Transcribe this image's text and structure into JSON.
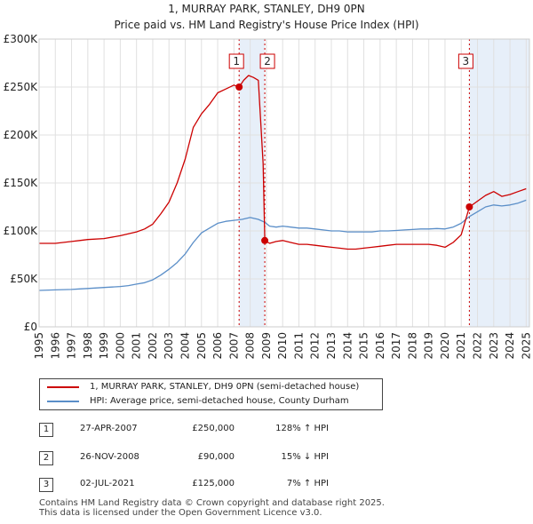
{
  "chart_data": {
    "type": "line",
    "title": "1, MURRAY PARK, STANLEY, DH9 0PN",
    "subtitle": "Price paid vs. HM Land Registry's House Price Index (HPI)",
    "xlabel": "",
    "ylabel": "",
    "xlim": [
      1995,
      2025.2
    ],
    "ylim": [
      0,
      300000
    ],
    "y_ticks": [
      {
        "value": 0,
        "label": "£0"
      },
      {
        "value": 50000,
        "label": "£50K"
      },
      {
        "value": 100000,
        "label": "£100K"
      },
      {
        "value": 150000,
        "label": "£150K"
      },
      {
        "value": 200000,
        "label": "£200K"
      },
      {
        "value": 250000,
        "label": "£250K"
      },
      {
        "value": 300000,
        "label": "£300K"
      }
    ],
    "x_ticks": [
      "1995",
      "1996",
      "1997",
      "1998",
      "1999",
      "2000",
      "2001",
      "2002",
      "2003",
      "2004",
      "2005",
      "2006",
      "2007",
      "2008",
      "2009",
      "2010",
      "2011",
      "2012",
      "2013",
      "2014",
      "2015",
      "2016",
      "2017",
      "2018",
      "2019",
      "2020",
      "2021",
      "2022",
      "2023",
      "2024",
      "2025"
    ],
    "grid": true,
    "series": [
      {
        "name": "1, MURRAY PARK, STANLEY, DH9 0PN (semi-detached house)",
        "color": "#cc0000",
        "x": [
          1995.0,
          1996.0,
          1997.0,
          1997.5,
          1998.0,
          1999.0,
          2000.0,
          2000.5,
          2001.0,
          2001.5,
          2002.0,
          2002.5,
          2003.0,
          2003.5,
          2004.0,
          2004.5,
          2005.0,
          2005.5,
          2006.0,
          2006.5,
          2007.0,
          2007.32,
          2007.6,
          2007.9,
          2008.2,
          2008.5,
          2008.8,
          2008.9,
          2009.2,
          2009.6,
          2010.0,
          2010.5,
          2011.0,
          2011.5,
          2012.0,
          2012.5,
          2013.0,
          2013.5,
          2014.0,
          2014.5,
          2015.0,
          2015.5,
          2016.0,
          2016.5,
          2017.0,
          2017.5,
          2018.0,
          2018.5,
          2019.0,
          2019.5,
          2020.0,
          2020.5,
          2021.0,
          2021.5,
          2022.0,
          2022.5,
          2023.0,
          2023.5,
          2024.0,
          2024.5,
          2025.0
        ],
        "values": [
          87000,
          87000,
          89000,
          90000,
          91000,
          92000,
          95000,
          97000,
          99000,
          102000,
          107000,
          118000,
          130000,
          150000,
          175000,
          208000,
          222000,
          232000,
          244000,
          248000,
          252000,
          250000,
          257000,
          262000,
          260000,
          257000,
          170000,
          90000,
          87000,
          89000,
          90000,
          88000,
          86000,
          86000,
          85000,
          84000,
          83000,
          82000,
          81000,
          81000,
          82000,
          83000,
          84000,
          85000,
          86000,
          86000,
          86000,
          86000,
          86000,
          85000,
          83000,
          88000,
          96000,
          125000,
          131000,
          137000,
          141000,
          136000,
          138000,
          141000,
          144000
        ]
      },
      {
        "name": "HPI: Average price, semi-detached house, County Durham",
        "color": "#5a8ec8",
        "x": [
          1995.0,
          1996.0,
          1997.0,
          1997.5,
          1998.0,
          1999.0,
          2000.0,
          2000.5,
          2001.0,
          2001.5,
          2002.0,
          2002.5,
          2003.0,
          2003.5,
          2004.0,
          2004.5,
          2005.0,
          2005.5,
          2006.0,
          2006.5,
          2007.0,
          2007.5,
          2008.0,
          2008.5,
          2008.9,
          2009.2,
          2009.6,
          2010.0,
          2010.5,
          2011.0,
          2011.5,
          2012.0,
          2012.5,
          2013.0,
          2013.5,
          2014.0,
          2014.5,
          2015.0,
          2015.5,
          2016.0,
          2016.5,
          2017.0,
          2017.5,
          2018.0,
          2018.5,
          2019.0,
          2019.5,
          2020.0,
          2020.5,
          2021.0,
          2021.5,
          2022.0,
          2022.5,
          2023.0,
          2023.5,
          2024.0,
          2024.5,
          2025.0
        ],
        "values": [
          38000,
          38500,
          39000,
          39500,
          40000,
          41000,
          42000,
          43000,
          44500,
          46000,
          49000,
          54000,
          60000,
          67000,
          76000,
          88000,
          98000,
          103000,
          108000,
          110000,
          111000,
          112000,
          114000,
          112000,
          109000,
          105000,
          104000,
          105000,
          104000,
          103000,
          103000,
          102000,
          101000,
          100000,
          100000,
          99000,
          99000,
          99000,
          99000,
          100000,
          100000,
          100500,
          101000,
          101500,
          102000,
          102000,
          102500,
          102000,
          104000,
          108000,
          115000,
          120000,
          125000,
          127000,
          126000,
          127000,
          129000,
          132000
        ]
      }
    ],
    "sales": [
      {
        "num": "1",
        "x": 2007.32,
        "value": 250000
      },
      {
        "num": "2",
        "x": 2008.9,
        "value": 90000
      },
      {
        "num": "3",
        "x": 2021.5,
        "value": 125000
      }
    ],
    "shaded_spans": [
      {
        "from": 2007.32,
        "to": 2008.9
      },
      {
        "from": 2021.5,
        "to": 2025.2
      }
    ]
  },
  "legend": {
    "series1": "1, MURRAY PARK, STANLEY, DH9 0PN (semi-detached house)",
    "series2": "HPI: Average price, semi-detached house, County Durham"
  },
  "transactions": [
    {
      "num": "1",
      "date": "27-APR-2007",
      "price": "£250,000",
      "hpi": "128% ↑ HPI"
    },
    {
      "num": "2",
      "date": "26-NOV-2008",
      "price": "£90,000",
      "hpi": "15% ↓ HPI"
    },
    {
      "num": "3",
      "date": "02-JUL-2021",
      "price": "£125,000",
      "hpi": "7% ↑ HPI"
    }
  ],
  "footer": {
    "line1": "Contains HM Land Registry data © Crown copyright and database right 2025.",
    "line2": "This data is licensed under the Open Government Licence v3.0."
  }
}
